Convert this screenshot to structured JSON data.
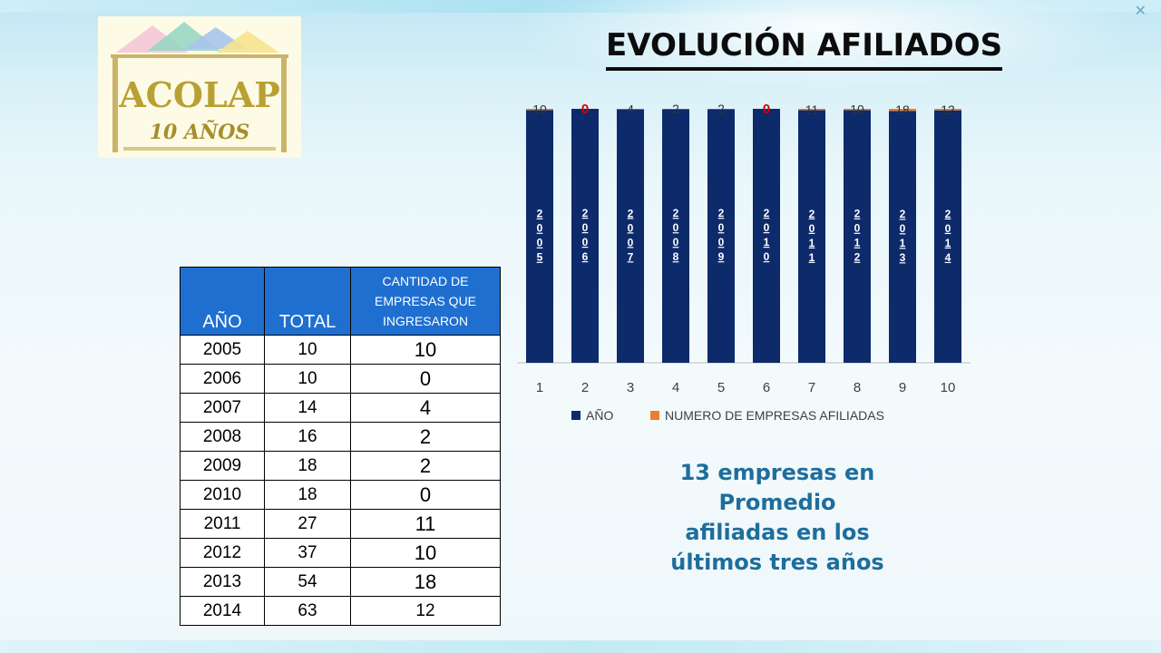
{
  "slide": {
    "title": "EVOLUCIÓN AFILIADOS",
    "logo": {
      "text": "ACOLAP",
      "subtext": "10 AÑOS",
      "icon": "acolap-logo"
    },
    "note_lines": [
      "13 empresas en",
      "Promedio",
      "afiliadas en los",
      "últimos tres años"
    ]
  },
  "table": {
    "headers": [
      "AÑO",
      "TOTAL",
      "CANTIDAD DE EMPRESAS QUE INGRESARON"
    ],
    "rows": [
      [
        "2005",
        "10",
        "10"
      ],
      [
        "2006",
        "10",
        "0"
      ],
      [
        "2007",
        "14",
        "4"
      ],
      [
        "2008",
        "16",
        "2"
      ],
      [
        "2009",
        "18",
        "2"
      ],
      [
        "2010",
        "18",
        "0"
      ],
      [
        "2011",
        "27",
        "11"
      ],
      [
        "2012",
        "37",
        "10"
      ],
      [
        "2013",
        "54",
        "18"
      ],
      [
        "2014",
        "63",
        "12"
      ]
    ]
  },
  "chart_data": {
    "type": "bar",
    "stacking": "percent",
    "categories": [
      "1",
      "2",
      "3",
      "4",
      "5",
      "6",
      "7",
      "8",
      "9",
      "10"
    ],
    "series": [
      {
        "name": "AÑO",
        "color": "#0d2a6b",
        "values": [
          2005,
          2006,
          2007,
          2008,
          2009,
          2010,
          2011,
          2012,
          2013,
          2014
        ]
      },
      {
        "name": "NUMERO DE EMPRESAS AFILIADAS",
        "color": "#ed7d31",
        "values": [
          10,
          0,
          4,
          2,
          2,
          0,
          11,
          10,
          18,
          12
        ]
      }
    ],
    "data_label_colors": {
      "zero": "#e00000",
      "default": "#333333"
    },
    "legend_position": "bottom",
    "grid": false
  }
}
